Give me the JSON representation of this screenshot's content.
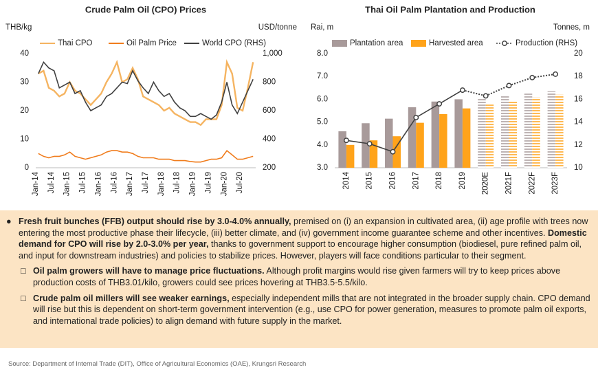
{
  "chart_data": [
    {
      "type": "line",
      "title": "Crude Palm Oil (CPO) Prices",
      "y_label": "THB/kg",
      "y2_label": "USD/tonne",
      "categories": [
        "Jan-14",
        null,
        null,
        "Jul-14",
        null,
        null,
        "Jan-15",
        null,
        null,
        "Jul-15",
        null,
        null,
        "Jan-16",
        null,
        null,
        "Jul-16",
        null,
        null,
        "Jan-17",
        null,
        null,
        "Jul-17",
        null,
        null,
        "Jan-18",
        null,
        null,
        "Jul-18",
        null,
        null,
        "Jan-19",
        null,
        null,
        "Jul-19",
        null,
        null,
        "Jan-20",
        null,
        null,
        "Jul-20",
        null,
        null
      ],
      "series": [
        {
          "name": "Thai CPO",
          "color": "#f5b461",
          "values": [
            33,
            34,
            28,
            27,
            25,
            26,
            30,
            27,
            26,
            24,
            22,
            24,
            26,
            30,
            33,
            37,
            30,
            31,
            35,
            31,
            25,
            24,
            23,
            22,
            20,
            21,
            19,
            18,
            17,
            16,
            16,
            15,
            17,
            17,
            17,
            22,
            37,
            33,
            21,
            20,
            28,
            37
          ]
        },
        {
          "name": "Oil Palm Price",
          "color": "#f07c1c",
          "values": [
            5,
            4,
            3.5,
            4,
            4,
            4.5,
            5.5,
            4,
            3.5,
            3,
            3.5,
            4,
            4.5,
            5.5,
            6,
            6,
            5.5,
            5.5,
            5,
            4,
            3.5,
            3.5,
            3.5,
            3,
            3,
            3,
            2.5,
            2.5,
            2.5,
            2.2,
            2,
            2,
            2.5,
            3,
            3,
            3.5,
            6,
            4.5,
            3,
            3,
            3.5,
            4
          ]
        },
        {
          "name": "World CPO (RHS)",
          "color": "#404040",
          "axis": "y2",
          "values": [
            860,
            940,
            900,
            880,
            760,
            780,
            800,
            720,
            740,
            660,
            600,
            620,
            640,
            700,
            720,
            760,
            800,
            790,
            880,
            810,
            760,
            720,
            800,
            740,
            700,
            720,
            660,
            620,
            600,
            560,
            560,
            580,
            560,
            540,
            570,
            660,
            800,
            640,
            580,
            660,
            740,
            820
          ]
        }
      ],
      "ylim": [
        0,
        40
      ],
      "yticks": [
        0,
        10,
        20,
        30,
        40
      ],
      "y2lim": [
        200,
        1000
      ],
      "y2ticks": [
        200,
        400,
        600,
        800,
        {
          "value": 1000,
          "label": "1,000"
        }
      ]
    },
    {
      "type": "bar",
      "title": "Thai Oil Palm Plantation and Production",
      "y_label": "Rai, m",
      "y2_label": "Tonnes, m",
      "categories": [
        "2014",
        "2015",
        "2016",
        "2017",
        "2018",
        "2019",
        "2020E",
        "2021F",
        "2022F",
        "2023F"
      ],
      "series": [
        {
          "name": "Plantation area",
          "color": "#a89a9a",
          "values": [
            4.6,
            4.95,
            5.15,
            5.65,
            5.9,
            6.0,
            6.05,
            6.15,
            6.25,
            6.35
          ]
        },
        {
          "name": "Harvested area",
          "color": "#ffa31a",
          "values": [
            4.0,
            4.2,
            4.38,
            4.97,
            5.35,
            5.6,
            5.82,
            5.95,
            6.08,
            6.2
          ]
        },
        {
          "name": "Production (RHS)",
          "color": "#404040",
          "type": "line",
          "axis": "y2",
          "values": [
            12.4,
            12.1,
            11.4,
            14.4,
            15.6,
            16.8,
            16.3,
            17.2,
            17.9,
            18.2
          ]
        }
      ],
      "ylim": [
        3,
        8
      ],
      "yticks": [
        {
          "value": 3,
          "label": "3.0"
        },
        {
          "value": 4,
          "label": "4.0"
        },
        {
          "value": 5,
          "label": "5.0"
        },
        {
          "value": 6,
          "label": "6.0"
        },
        {
          "value": 7,
          "label": "7.0"
        },
        {
          "value": 8,
          "label": "8.0"
        }
      ],
      "y2lim": [
        10,
        20
      ],
      "y2ticks": [
        10,
        12,
        14,
        16,
        18,
        20
      ]
    }
  ],
  "commentary": {
    "main": [
      {
        "text": "Fresh fruit bunches (FFB) output should rise by 3.0-4.0% annually,",
        "bold": true
      },
      {
        "text": " premised on (i) an expansion in cultivated area, (ii) age profile with trees now entering the most productive phase their lifecycle, (iii) better climate, and (iv) government income guarantee scheme and other incentives. "
      },
      {
        "text": "Domestic demand for CPO will rise by 2.0-3.0% per year,",
        "bold": true
      },
      {
        "text": " thanks to government support to encourage higher consumption (biodiesel, pure refined palm oil, and input for downstream industries) and policies to stabilize prices. However, players will face conditions particular to their segment."
      }
    ],
    "sub": [
      [
        {
          "text": "Oil palm growers will have to manage price fluctuations.",
          "bold": true
        },
        {
          "text": " Although profit margins would rise given farmers will try to keep prices above production costs of THB3.01/kilo, growers could see prices hovering at THB3.5-5.5/kilo."
        }
      ],
      [
        {
          "text": "Crude palm oil millers will see weaker earnings,",
          "bold": true
        },
        {
          "text": " especially independent mills that are not integrated in the broader supply chain. CPO demand will rise but this is dependent on short-term government intervention (e.g., use CPO for power generation, measures to promote palm oil exports, and international trade policies) to align demand with future supply in the market."
        }
      ]
    ]
  },
  "source": "Source: Department of Internal Trade (DIT), Office of Agricultural Economics (OAE), Krungsri Research"
}
